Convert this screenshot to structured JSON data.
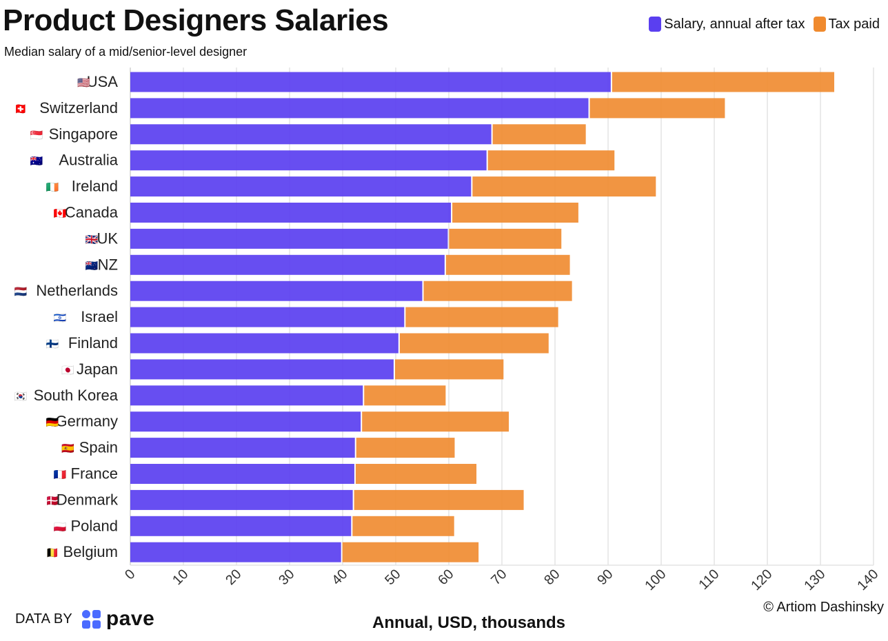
{
  "header": {
    "title": "Product Designers Salaries",
    "subtitle": "Median salary of a mid/senior-level designer"
  },
  "legend": {
    "items": [
      {
        "label": "Salary, annual after tax",
        "color": "#5a3ff0"
      },
      {
        "label": "Tax paid",
        "color": "#f08a2e"
      }
    ]
  },
  "footer": {
    "data_by": "DATA BY",
    "logo_text": "pave",
    "credit": "© Artiom Dashinsky"
  },
  "chart_data": {
    "type": "bar",
    "orientation": "horizontal",
    "stacked": true,
    "title": "Product Designers Salaries",
    "subtitle": "Median salary of a mid/senior-level designer",
    "xlabel": "Annual, USD, thousands",
    "ylabel": "",
    "xlim": [
      0,
      140
    ],
    "xticks": [
      0,
      10,
      20,
      30,
      40,
      50,
      60,
      70,
      80,
      90,
      100,
      110,
      120,
      130,
      140
    ],
    "grid": "vertical",
    "legend_position": "top-right",
    "categories": [
      "USA",
      "Switzerland",
      "Singapore",
      "Australia",
      "Ireland",
      "Canada",
      "UK",
      "NZ",
      "Netherlands",
      "Israel",
      "Finland",
      "Japan",
      "South Korea",
      "Germany",
      "Spain",
      "France",
      "Denmark",
      "Poland",
      "Belgium"
    ],
    "flags": [
      "🇺🇸",
      "🇨🇭",
      "🇸🇬",
      "🇦🇺",
      "🇮🇪",
      "🇨🇦",
      "🇬🇧",
      "🇳🇿",
      "🇳🇱",
      "🇮🇱",
      "🇫🇮",
      "🇯🇵",
      "🇰🇷",
      "🇩🇪",
      "🇪🇸",
      "🇫🇷",
      "🇩🇰",
      "🇵🇱",
      "🇧🇪"
    ],
    "series": [
      {
        "name": "Salary, annual after tax",
        "color": "#5a3ff0",
        "values": [
          90.5,
          86.3,
          68.0,
          67.1,
          64.2,
          60.4,
          59.8,
          59.2,
          55.0,
          51.6,
          50.5,
          49.6,
          43.8,
          43.4,
          42.3,
          42.2,
          41.9,
          41.6,
          39.7
        ]
      },
      {
        "name": "Tax paid",
        "color": "#f08a2e",
        "values": [
          42.1,
          25.7,
          17.8,
          24.1,
          34.8,
          24.0,
          21.4,
          23.6,
          28.2,
          29.0,
          28.3,
          20.7,
          15.6,
          27.9,
          18.8,
          23.0,
          32.2,
          19.4,
          25.9
        ]
      }
    ]
  }
}
